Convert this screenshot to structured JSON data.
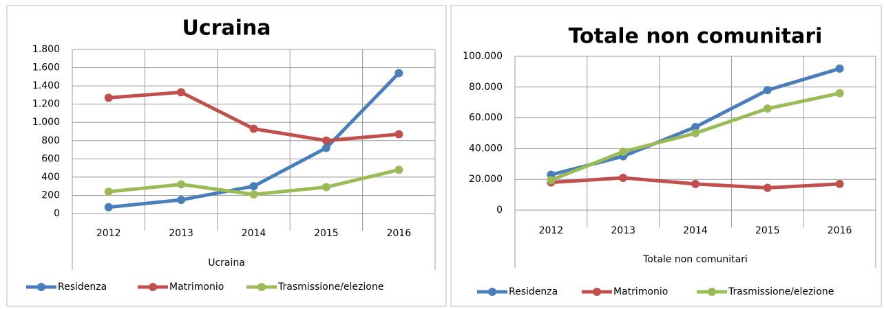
{
  "chart_data": [
    {
      "type": "line",
      "title": "Ucraina",
      "x_label": "Ucraina",
      "categories": [
        "2012",
        "2013",
        "2014",
        "2015",
        "2016"
      ],
      "series": [
        {
          "name": "Residenza",
          "color": "#4a7ebb",
          "values": [
            70,
            150,
            300,
            720,
            1540
          ]
        },
        {
          "name": "Matrimonio",
          "color": "#c0504d",
          "values": [
            1270,
            1330,
            930,
            800,
            870
          ]
        },
        {
          "name": "Trasmissione/elezione",
          "color": "#9bbb59",
          "values": [
            240,
            320,
            210,
            290,
            480
          ]
        }
      ],
      "ylim": [
        0,
        1800
      ],
      "yticks": [
        0,
        200,
        400,
        600,
        800,
        {
          "value": 1000,
          "label": "1.000"
        },
        {
          "value": 1200,
          "label": "1.200"
        },
        {
          "value": 1400,
          "label": "1.400"
        },
        {
          "value": 1600,
          "label": "1.600"
        },
        {
          "value": 1800,
          "label": "1.800"
        }
      ],
      "grid": true,
      "legend": "bottom"
    },
    {
      "type": "line",
      "title": "Totale non comunitari",
      "x_label": "Totale non comunitari",
      "categories": [
        "2012",
        "2013",
        "2014",
        "2015",
        "2016"
      ],
      "series": [
        {
          "name": "Residenza",
          "color": "#4a7ebb",
          "values": [
            23000,
            35000,
            54000,
            78000,
            92000
          ]
        },
        {
          "name": "Matrimonio",
          "color": "#c0504d",
          "values": [
            18000,
            21000,
            17000,
            14500,
            17000
          ]
        },
        {
          "name": "Trasmissione/elezione",
          "color": "#9bbb59",
          "values": [
            19500,
            38000,
            50000,
            66000,
            76000
          ]
        }
      ],
      "ylim": [
        0,
        100000
      ],
      "yticks": [
        0,
        {
          "value": 20000,
          "label": "20.000"
        },
        {
          "value": 40000,
          "label": "40.000"
        },
        {
          "value": 60000,
          "label": "60.000"
        },
        {
          "value": 80000,
          "label": "80.000"
        },
        {
          "value": 100000,
          "label": "100.000"
        }
      ],
      "grid": true,
      "legend": "bottom"
    }
  ]
}
